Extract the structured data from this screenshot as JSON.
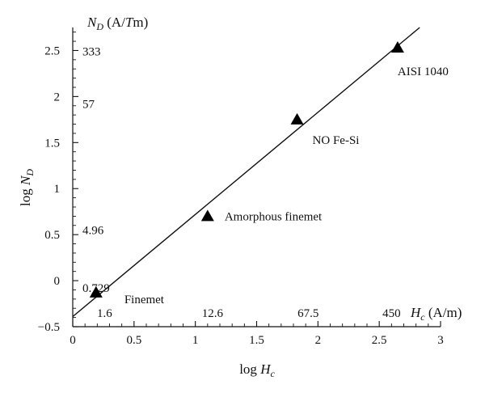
{
  "chart_data": {
    "type": "scatter",
    "xlabel": "log H_c",
    "ylabel": "log N_D",
    "xlim": [
      0,
      3
    ],
    "ylim": [
      -0.5,
      2.75
    ],
    "xticks": [
      0,
      0.5,
      1,
      1.5,
      2,
      2.5,
      3
    ],
    "xtick_labels": [
      "0",
      "0.5",
      "1",
      "1.5",
      "2",
      "2.5",
      "3"
    ],
    "yticks": [
      -0.5,
      0,
      0.5,
      1,
      1.5,
      2,
      2.5
    ],
    "ytick_labels": [
      "−0.5",
      "0",
      "0.5",
      "1",
      "1.5",
      "2",
      "2.5"
    ],
    "grid": false,
    "points": [
      {
        "label": "Finemet",
        "x": 0.19,
        "y": -0.13
      },
      {
        "label": "Amorphous finemet",
        "x": 1.1,
        "y": 0.7
      },
      {
        "label": "NO Fe-Si",
        "x": 1.83,
        "y": 1.75
      },
      {
        "label": "AISI 1040",
        "x": 2.65,
        "y": 2.53
      }
    ],
    "fit_line": {
      "x": [
        0,
        2.83
      ],
      "y": [
        -0.39,
        2.75
      ]
    },
    "secondary_y_label": "N_D (A/Tm)",
    "secondary_y_ticks": [
      {
        "label": "333",
        "y": 2.5
      },
      {
        "label": "57",
        "y": 1.93
      },
      {
        "label": "4.96",
        "y": 0.56
      },
      {
        "label": "0.729",
        "y": -0.07
      }
    ],
    "secondary_x_label": "H_c (A/m)",
    "secondary_x_ticks": [
      {
        "label": "1.6",
        "x": 0.26
      },
      {
        "label": "12.6",
        "x": 1.14
      },
      {
        "label": "67.5",
        "x": 1.92
      },
      {
        "label": "450",
        "x": 2.6
      }
    ]
  }
}
